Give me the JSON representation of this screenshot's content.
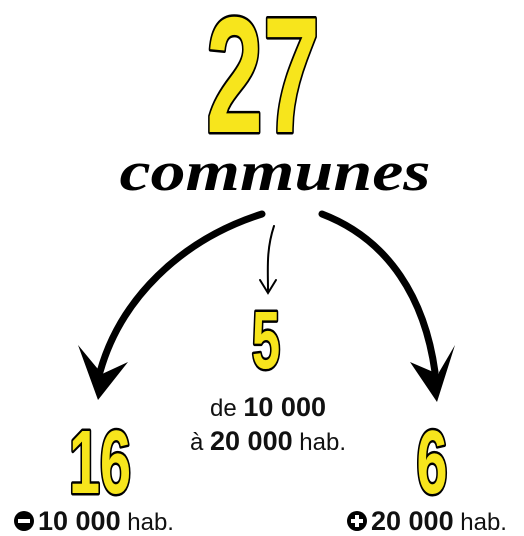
{
  "total": {
    "number": "27",
    "label": "communes"
  },
  "groups": [
    {
      "number": "16",
      "lines": [
        [
          "10 000",
          "hab."
        ]
      ]
    },
    {
      "number": "5",
      "lines": [
        [
          "de",
          "10 000"
        ],
        [
          "à",
          "20 000",
          "hab."
        ]
      ]
    },
    {
      "number": "6",
      "lines": [
        [
          "20 000",
          "hab."
        ]
      ]
    }
  ]
}
